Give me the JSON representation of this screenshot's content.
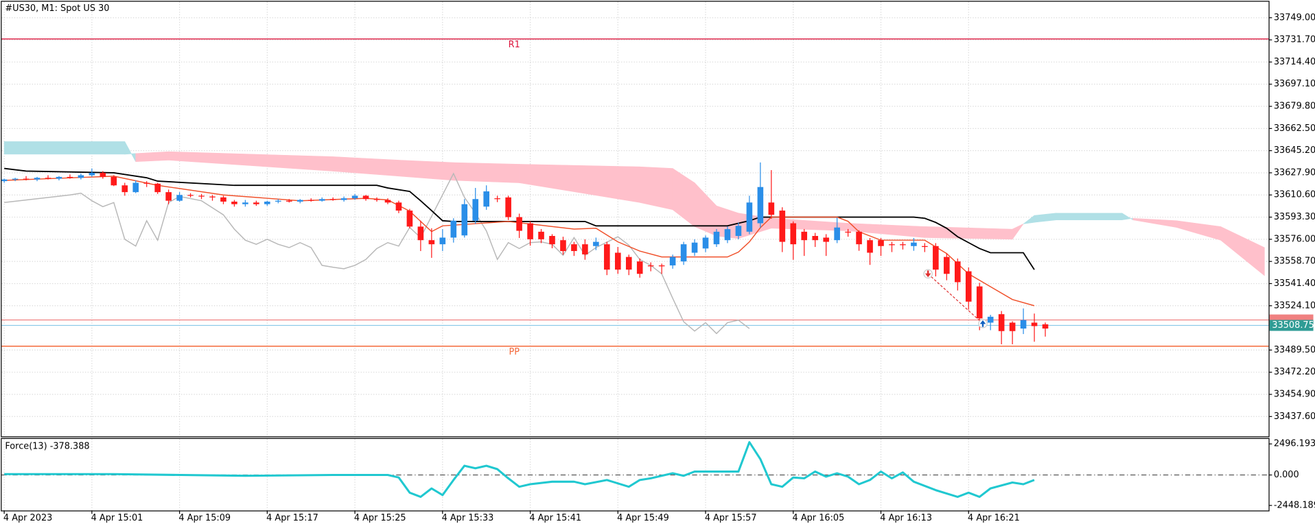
{
  "chart_data": [
    {
      "type": "candlestick",
      "title": "#US30, M1:  Spot US 30",
      "categories": [
        "4 Apr 2023",
        null,
        null,
        null,
        null,
        null,
        null,
        null,
        "4 Apr 15:01",
        null,
        null,
        null,
        null,
        null,
        null,
        null,
        "4 Apr 15:09",
        null,
        null,
        null,
        null,
        null,
        null,
        null,
        "4 Apr 15:17",
        null,
        null,
        null,
        null,
        null,
        null,
        null,
        "4 Apr 15:25",
        null,
        null,
        null,
        null,
        null,
        null,
        null,
        "4 Apr 15:33",
        null,
        null,
        null,
        null,
        null,
        null,
        null,
        "4 Apr 15:41",
        null,
        null,
        null,
        null,
        null,
        null,
        null,
        "4 Apr 15:49",
        null,
        null,
        null,
        null,
        null,
        null,
        null,
        "4 Apr 15:57",
        null,
        null,
        null,
        null,
        null,
        null,
        null,
        "4 Apr 16:05",
        null,
        null,
        null,
        null,
        null,
        null,
        null,
        "4 Apr 16:13",
        null,
        null,
        null,
        null,
        null,
        null,
        null,
        "4 Apr 16:21",
        null,
        null,
        null,
        null,
        null,
        null,
        null
      ],
      "open": [
        33621.4,
        33622.7,
        33623.3,
        33622.7,
        33624.0,
        33623.3,
        33624.7,
        33624.0,
        33626.0,
        33627.9,
        33624.7,
        33618.1,
        33612.8,
        33620.1,
        33619.4,
        33612.8,
        33606.1,
        33610.6,
        33610.0,
        33609.4,
        33608.7,
        33605.4,
        33603.4,
        33604.7,
        33603.4,
        33605.4,
        33606.1,
        33605.4,
        33606.7,
        33606.1,
        33607.4,
        33606.7,
        33608.0,
        33610.0,
        33607.4,
        33606.7,
        33604.7,
        33598.4,
        33585.9,
        33575.3,
        33572.1,
        33577.3,
        33579.0,
        33590.5,
        33601.5,
        33608.0,
        33608.7,
        33593.3,
        33588.5,
        33581.9,
        33578.6,
        33575.3,
        33572.1,
        33572.1,
        33570.7,
        33572.1,
        33565.5,
        33562.2,
        33558.7,
        33555.6,
        33555.6,
        33555.6,
        33558.7,
        33565.5,
        33568.8,
        33572.1,
        33575.3,
        33578.6,
        33581.9,
        33588.5,
        33604.7,
        33598.4,
        33588.5,
        33581.9,
        33578.6,
        33577.3,
        33575.3,
        33581.9,
        33581.9,
        33575.3,
        33575.3,
        33572.1,
        33572.1,
        33570.7,
        33570.7,
        33570.7,
        33562.2,
        33558.7,
        33551.0,
        33539.2,
        33510.9,
        33517.5,
        33510.9,
        33506.3,
        33510.9,
        33509.6
      ],
      "high": [
        33623.3,
        33624.0,
        33625.3,
        33624.7,
        33626.0,
        33625.3,
        33626.6,
        33627.3,
        33631.3,
        33629.2,
        33626.0,
        33620.1,
        33622.0,
        33621.4,
        33620.1,
        33614.8,
        33612.8,
        33612.0,
        33611.4,
        33610.6,
        33610.0,
        33606.7,
        33606.7,
        33606.1,
        33606.1,
        33607.4,
        33607.4,
        33607.4,
        33608.0,
        33608.7,
        33608.7,
        33609.4,
        33611.4,
        33610.6,
        33608.7,
        33608.0,
        33606.1,
        33599.7,
        33590.5,
        33584.6,
        33583.9,
        33592.4,
        33607.4,
        33616.1,
        33618.1,
        33610.0,
        33610.0,
        33596.0,
        33590.0,
        33584.0,
        33580.0,
        33578.0,
        33574.0,
        33576.0,
        33577.3,
        33574.0,
        33570.0,
        33564.0,
        33561.0,
        33558.0,
        33557.0,
        33564.0,
        33574.0,
        33576.0,
        33579.0,
        33584.0,
        33586.0,
        33589.0,
        33610.0,
        33636.0,
        33630.0,
        33601.0,
        33590.0,
        33584.0,
        33581.0,
        33580.0,
        33593.0,
        33584.0,
        33583.0,
        33577.0,
        33577.0,
        33574.0,
        33574.0,
        33577.0,
        33573.0,
        33573.0,
        33565.0,
        33561.0,
        33554.0,
        33542.0,
        33517.0,
        33520.0,
        33512.0,
        33522.0,
        33518.0,
        33511.0
      ],
      "low": [
        33620.1,
        33621.4,
        33622.0,
        33621.4,
        33622.7,
        33622.0,
        33623.3,
        33622.7,
        33624.7,
        33623.3,
        33617.5,
        33610.0,
        33612.0,
        33616.8,
        33611.4,
        33603.4,
        33605.4,
        33608.7,
        33607.4,
        33606.1,
        33603.4,
        33601.5,
        33601.5,
        33602.1,
        33602.1,
        33604.1,
        33604.7,
        33604.1,
        33605.4,
        33605.4,
        33606.1,
        33605.4,
        33606.7,
        33606.1,
        33605.4,
        33603.4,
        33596.4,
        33584.6,
        33566.8,
        33561.5,
        33566.8,
        33573.4,
        33577.3,
        33588.0,
        33599.0,
        33605.0,
        33591.0,
        33577.0,
        33571.0,
        33573.0,
        33569.0,
        33564.0,
        33563.0,
        33560.0,
        33567.5,
        33548.0,
        33549.0,
        33548.0,
        33546.0,
        33551.0,
        33549.0,
        33553.0,
        33556.0,
        33563.0,
        33566.0,
        33570.0,
        33573.0,
        33576.0,
        33580.0,
        33585.0,
        33592.0,
        33566.0,
        33560.0,
        33563.0,
        33570.0,
        33563.0,
        33573.0,
        33578.0,
        33567.0,
        33556.0,
        33563.0,
        33566.0,
        33568.0,
        33567.0,
        33566.0,
        33547.0,
        33544.0,
        33536.0,
        33521.0,
        33505.0,
        33505.0,
        33494.0,
        33494.0,
        33502.0,
        33496.0,
        33500.0
      ],
      "close": [
        33622.7,
        33623.3,
        33622.7,
        33624.0,
        33623.3,
        33624.7,
        33624.0,
        33626.0,
        33627.9,
        33624.7,
        33618.1,
        33612.8,
        33620.1,
        33619.4,
        33612.8,
        33606.1,
        33610.6,
        33610.0,
        33609.4,
        33608.7,
        33605.4,
        33603.4,
        33604.7,
        33603.4,
        33605.4,
        33606.1,
        33605.4,
        33606.7,
        33606.1,
        33607.4,
        33606.7,
        33608.0,
        33610.0,
        33607.4,
        33606.7,
        33604.7,
        33598.4,
        33585.9,
        33575.3,
        33572.1,
        33577.3,
        33590.5,
        33603.4,
        33607.4,
        33613.4,
        33607.4,
        33593.3,
        33582.6,
        33576.0,
        33576.0,
        33572.1,
        33566.8,
        33566.8,
        33564.2,
        33574.0,
        33552.3,
        33552.3,
        33552.3,
        33549.0,
        33554.9,
        33554.9,
        33562.2,
        33572.1,
        33573.4,
        33577.3,
        33581.9,
        33583.9,
        33586.5,
        33604.7,
        33616.8,
        33595.1,
        33574.0,
        33572.1,
        33575.3,
        33575.3,
        33574.0,
        33585.2,
        33581.2,
        33572.1,
        33565.5,
        33570.7,
        33571.4,
        33571.4,
        33573.4,
        33570.0,
        33552.3,
        33549.0,
        33542.5,
        33527.3,
        33514.2,
        33515.5,
        33504.3,
        33504.3,
        33512.9,
        33508.2,
        33506.3
      ],
      "up_color": "#2a8ee8",
      "down_color": "#ff1a1a",
      "xlim": [
        -0.23,
        115.38
      ],
      "ylim": [
        33422.1,
        33761.5
      ],
      "yticks": [
        {
          "value": 33749.0,
          "label": "33749.00"
        },
        {
          "value": 33731.7,
          "label": "33731.70"
        },
        {
          "value": 33714.4,
          "label": "33714.40"
        },
        {
          "value": 33697.1,
          "label": "33697.10"
        },
        {
          "value": 33679.8,
          "label": "33679.80"
        },
        {
          "value": 33662.5,
          "label": "33662.50"
        },
        {
          "value": 33645.2,
          "label": "33645.20"
        },
        {
          "value": 33627.9,
          "label": "33627.90"
        },
        {
          "value": 33610.6,
          "label": "33610.60"
        },
        {
          "value": 33593.3,
          "label": "33593.30"
        },
        {
          "value": 33576.0,
          "label": "33576.00"
        },
        {
          "value": 33558.7,
          "label": "33558.70"
        },
        {
          "value": 33541.4,
          "label": "33541.40"
        },
        {
          "value": 33524.1,
          "label": "33524.10"
        },
        {
          "value": 33489.5,
          "label": "33489.50"
        },
        {
          "value": 33472.2,
          "label": "33472.20"
        },
        {
          "value": 33454.9,
          "label": "33454.90"
        },
        {
          "value": 33437.6,
          "label": "33437.60"
        }
      ],
      "grid": true,
      "cloud": {
        "color_up": "#b0e0e6",
        "color_down": "#ffc0cb",
        "x": [
          0,
          11,
          12,
          15,
          30,
          36,
          41,
          47,
          58,
          61,
          63,
          65,
          67,
          70,
          77,
          84,
          92,
          93,
          94,
          96,
          102,
          103,
          107,
          111,
          115
        ],
        "span_a": [
          33652.3,
          33652.3,
          33636.6,
          33637.8,
          33629.2,
          33625.3,
          33622.0,
          33620.1,
          33604.7,
          33599.1,
          33585.9,
          33578.6,
          33576.6,
          33584.6,
          33582.6,
          33577.3,
          33576.0,
          33588.0,
          33594.6,
          33596.4,
          33596.4,
          33591.1,
          33585.2,
          33575.3,
          33547.6
        ],
        "span_b": [
          33642.4,
          33642.4,
          33643.0,
          33644.4,
          33640.5,
          33637.8,
          33635.9,
          33634.6,
          33632.6,
          33631.3,
          33620.1,
          33602.1,
          33596.4,
          33592.4,
          33588.5,
          33585.9,
          33583.9,
          33588.0,
          33589.2,
          33591.1,
          33591.1,
          33592.4,
          33590.5,
          33585.9,
          33569.5
        ]
      },
      "kijun": {
        "color": "#000000",
        "x": [
          0,
          2,
          10,
          13,
          14,
          21,
          34,
          35,
          37,
          38,
          39,
          40,
          41,
          53,
          54,
          66,
          67,
          68,
          69,
          83,
          84,
          85,
          86,
          87,
          88,
          89,
          90,
          93,
          94
        ],
        "values": [
          33631.3,
          33629.2,
          33627.9,
          33624.0,
          33621.4,
          33618.1,
          33618.1,
          33616.1,
          33613.4,
          33606.1,
          33598.4,
          33590.5,
          33589.9,
          33589.9,
          33586.5,
          33586.5,
          33588.5,
          33590.5,
          33593.3,
          33593.3,
          33592.4,
          33589.2,
          33584.6,
          33578.0,
          33573.4,
          33568.8,
          33565.5,
          33565.5,
          33552.3
        ]
      },
      "tenkan": {
        "color": "#f0502a",
        "x": [
          0,
          10,
          14,
          20,
          27,
          33,
          35,
          37,
          39,
          40,
          46,
          52,
          54,
          56,
          58,
          60,
          66,
          67,
          68,
          69,
          70,
          76,
          77,
          78,
          80,
          84,
          86,
          88,
          90,
          92,
          94
        ],
        "values": [
          33622.0,
          33625.3,
          33618.1,
          33610.6,
          33606.1,
          33608.0,
          33606.7,
          33598.0,
          33582.0,
          33586.5,
          33589.9,
          33584.0,
          33584.6,
          33574.0,
          33566.8,
          33562.2,
          33562.2,
          33566.0,
          33574.0,
          33585.0,
          33593.3,
          33593.3,
          33590.0,
          33581.9,
          33575.3,
          33575.3,
          33564.9,
          33549.0,
          33539.0,
          33529.0,
          33524.1
        ]
      },
      "chikou": {
        "color": "#b8b8b8",
        "x": [
          0,
          6,
          7,
          8,
          9,
          10,
          11,
          12,
          13,
          14,
          15,
          16,
          18,
          20,
          21,
          22,
          23,
          24,
          25,
          26,
          27,
          28,
          29,
          30,
          31,
          32,
          33,
          34,
          35,
          36,
          37,
          38,
          41,
          42,
          43,
          44,
          45,
          46,
          47,
          48,
          49,
          50,
          51,
          52,
          53,
          54,
          56,
          57,
          58,
          59,
          60,
          61,
          62,
          63,
          64,
          65,
          66,
          67,
          68
        ],
        "values": [
          33604.7,
          33610.6,
          33612.0,
          33606.1,
          33601.5,
          33604.7,
          33576.0,
          33570.7,
          33590.5,
          33575.3,
          33604.7,
          33609.4,
          33606.1,
          33595.1,
          33583.9,
          33575.3,
          33572.1,
          33576.0,
          33572.1,
          33569.5,
          33573.4,
          33569.5,
          33555.6,
          33554.2,
          33553.0,
          33555.6,
          33560.2,
          33568.8,
          33573.4,
          33570.7,
          33585.2,
          33577.3,
          33627.3,
          33608.7,
          33596.4,
          33582.6,
          33560.2,
          33573.4,
          33568.8,
          33573.4,
          33574.0,
          33572.1,
          33563.5,
          33577.3,
          33563.5,
          33569.5,
          33578.0,
          33571.4,
          33560.2,
          33555.6,
          33549.0,
          33530.0,
          33511.6,
          33504.3,
          33510.9,
          33502.4,
          33510.9,
          33512.9,
          33506.3
        ]
      },
      "levels": [
        {
          "label": "R1",
          "value": 33732.4,
          "color": "#dc143c"
        },
        {
          "label": "PP",
          "value": 33492.5,
          "color": "#f4683a"
        }
      ],
      "ask": {
        "value": 33513.0,
        "color": "#f08080"
      },
      "bid": {
        "value": 33508.75,
        "color": "#87c8e8",
        "label_color": "#2f9c95"
      },
      "deals": [
        {
          "x": 84.3,
          "price": 33549.0,
          "direction": "down",
          "color": "#e03030"
        },
        {
          "x": 89.3,
          "price": 33510.2,
          "direction": "up",
          "color": "#1060c0"
        }
      ]
    },
    {
      "type": "line",
      "title": "Force(13) -378.388",
      "color": "#20c8d0",
      "x": [
        0,
        10,
        22,
        30,
        35,
        36,
        37,
        38,
        39,
        40,
        41,
        42,
        43,
        44,
        45,
        46,
        47,
        48,
        50,
        52,
        53,
        55,
        57,
        58,
        59,
        61,
        62,
        63,
        66,
        67,
        68,
        69,
        70,
        71,
        72,
        73,
        74,
        75,
        76,
        77,
        78,
        79,
        80,
        81,
        82,
        83,
        85,
        87,
        88,
        89,
        90,
        92,
        93,
        94
      ],
      "values": [
        68,
        68,
        -68,
        0,
        0,
        -202,
        -1418,
        -1756,
        -1080,
        -1620,
        -405,
        742,
        540,
        742,
        472,
        -270,
        -945,
        -743,
        -540,
        -540,
        -743,
        -405,
        -945,
        -405,
        -270,
        135,
        -68,
        270,
        270,
        270,
        2633,
        1283,
        -742,
        -945,
        -203,
        -270,
        270,
        -135,
        135,
        -135,
        -743,
        -405,
        270,
        -270,
        203,
        -540,
        -1215,
        -1756,
        -1418,
        -1756,
        -1080,
        -608,
        -743,
        -405
      ],
      "ylim": [
        -2856,
        2900
      ],
      "yticks": [
        2496.193,
        {
          "value": 0,
          "label": "0.000"
        },
        -2448.189
      ],
      "zero_line": true
    }
  ]
}
